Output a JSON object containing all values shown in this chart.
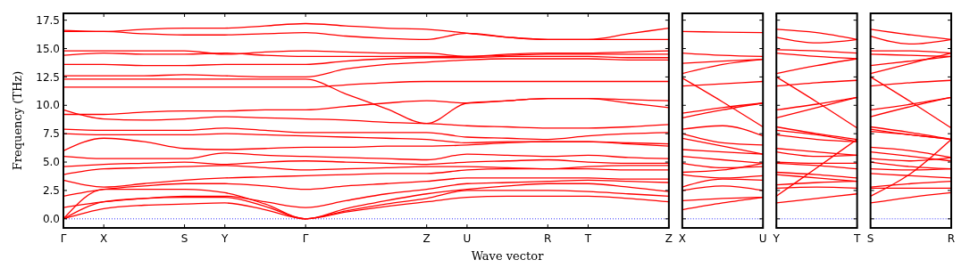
{
  "chart_data": [
    {
      "type": "line",
      "xlabel": "Wave vector",
      "ylabel": "Frequency (THz)",
      "categories": [
        "Γ",
        "X",
        null,
        "S",
        "Y",
        null,
        "Γ",
        null,
        null,
        "Z",
        "U",
        null,
        "R",
        "T",
        null,
        "Z"
      ],
      "ylim": [
        -0.8,
        18.1
      ],
      "yticks": [
        {
          "value": 0,
          "label": "0.0"
        },
        2.5,
        {
          "value": 5,
          "label": "5.0"
        },
        7.5,
        {
          "value": 10,
          "label": "10.0"
        },
        12.5,
        {
          "value": 15,
          "label": "15.0"
        },
        17.5
      ],
      "grid": false,
      "marker": "none",
      "line_style": "solid",
      "ref_lines": [
        {
          "axis": "y",
          "value": 0,
          "color": "#0000ff",
          "line_style": "dotted"
        }
      ],
      "series": [
        {
          "color": "#ff0000",
          "values": [
            0,
            0.9,
            1.2,
            1.3,
            1.4,
            0.8,
            0,
            0.6,
            1.1,
            1.5,
            1.9,
            2.0,
            2.0,
            2.0,
            1.8,
            1.5
          ]
        },
        {
          "color": "#ff0000",
          "values": [
            0,
            1.5,
            1.8,
            1.9,
            1.9,
            1.1,
            0,
            0.7,
            1.3,
            1.8,
            2.5,
            2.5,
            2.5,
            2.4,
            2.2,
            2.0
          ]
        },
        {
          "color": "#ff0000",
          "values": [
            0,
            2.6,
            2.6,
            2.6,
            2.3,
            1.3,
            0,
            0.9,
            1.6,
            2.2,
            2.6,
            2.9,
            3.1,
            3.1,
            2.8,
            2.4
          ]
        },
        {
          "color": "#ff0000",
          "values": [
            1.0,
            1.5,
            1.8,
            2.0,
            2.0,
            1.5,
            1.0,
            1.6,
            2.2,
            2.6,
            3.1,
            3.2,
            3.3,
            3.4,
            3.3,
            3.2
          ]
        },
        {
          "color": "#ff0000",
          "values": [
            2.0,
            2.6,
            2.9,
            3.1,
            3.1,
            2.9,
            2.6,
            2.9,
            3.1,
            3.3,
            3.6,
            3.6,
            3.6,
            3.6,
            3.5,
            3.5
          ]
        },
        {
          "color": "#ff0000",
          "values": [
            3.4,
            2.8,
            3.1,
            3.4,
            3.6,
            3.7,
            3.8,
            3.9,
            4.0,
            4.0,
            4.3,
            4.4,
            4.4,
            4.4,
            4.3,
            4.3
          ]
        },
        {
          "color": "#ff0000",
          "values": [
            3.9,
            4.4,
            4.5,
            4.6,
            4.7,
            4.5,
            4.3,
            4.4,
            4.5,
            4.6,
            4.6,
            4.5,
            4.4,
            4.6,
            4.7,
            4.7
          ]
        },
        {
          "color": "#ff0000",
          "values": [
            4.6,
            4.8,
            4.9,
            5.0,
            4.8,
            5.0,
            5.1,
            5.0,
            4.9,
            4.8,
            5.0,
            5.1,
            5.2,
            5.0,
            4.9,
            4.9
          ]
        },
        {
          "color": "#ff0000",
          "values": [
            5.5,
            5.3,
            5.3,
            5.3,
            5.8,
            5.6,
            5.5,
            5.4,
            5.3,
            5.2,
            5.7,
            5.6,
            5.5,
            5.6,
            5.4,
            5.3
          ]
        },
        {
          "color": "#ff0000",
          "values": [
            6.0,
            7.1,
            6.8,
            6.2,
            6.1,
            6.2,
            6.3,
            6.3,
            6.4,
            6.4,
            6.5,
            6.7,
            6.8,
            6.8,
            6.6,
            6.4
          ]
        },
        {
          "color": "#ff0000",
          "values": [
            7.5,
            7.4,
            7.4,
            7.4,
            7.5,
            7.4,
            7.3,
            7.2,
            7.1,
            7.0,
            6.7,
            6.8,
            6.8,
            6.8,
            6.7,
            6.6
          ]
        },
        {
          "color": "#ff0000",
          "values": [
            7.9,
            7.8,
            7.8,
            7.8,
            8.0,
            7.8,
            7.6,
            7.6,
            7.6,
            7.6,
            7.2,
            7.1,
            7.0,
            7.3,
            7.5,
            7.6
          ]
        },
        {
          "color": "#ff0000",
          "values": [
            9.6,
            8.8,
            8.7,
            8.8,
            9.0,
            8.9,
            8.8,
            8.7,
            8.5,
            8.4,
            8.2,
            8.1,
            8.0,
            8.0,
            8.1,
            8.3
          ]
        },
        {
          "color": "#ff0000",
          "values": [
            9.2,
            9.2,
            9.4,
            9.5,
            9.5,
            9.6,
            9.6,
            9.9,
            10.2,
            10.4,
            10.2,
            10.4,
            10.6,
            10.6,
            10.2,
            9.8
          ]
        },
        {
          "color": "#ff0000",
          "values": [
            11.6,
            11.6,
            11.6,
            11.6,
            11.6,
            11.6,
            11.6,
            11.8,
            12.0,
            12.1,
            12.1,
            12.1,
            12.1,
            12.1,
            12.1,
            12.1
          ]
        },
        {
          "color": "#ff0000",
          "values": [
            12.3,
            12.3,
            12.3,
            12.3,
            12.3,
            12.3,
            12.3,
            11.0,
            9.7,
            8.4,
            10.2,
            10.4,
            10.6,
            10.6,
            10.5,
            10.4
          ]
        },
        {
          "color": "#ff0000",
          "values": [
            12.6,
            12.6,
            12.6,
            12.7,
            12.6,
            12.5,
            12.5,
            13.2,
            13.6,
            13.8,
            14.0,
            14.1,
            14.1,
            14.1,
            14.0,
            14.0
          ]
        },
        {
          "color": "#ff0000",
          "values": [
            13.6,
            13.6,
            13.5,
            13.5,
            13.6,
            13.6,
            13.6,
            13.9,
            14.1,
            14.2,
            14.2,
            14.3,
            14.3,
            14.3,
            14.2,
            14.2
          ]
        },
        {
          "color": "#ff0000",
          "values": [
            14.4,
            14.6,
            14.5,
            14.5,
            14.6,
            14.4,
            14.3,
            14.3,
            14.3,
            14.3,
            14.3,
            14.4,
            14.5,
            14.5,
            14.5,
            14.5
          ]
        },
        {
          "color": "#ff0000",
          "values": [
            14.8,
            14.8,
            14.8,
            14.8,
            14.5,
            14.7,
            14.8,
            14.7,
            14.6,
            14.6,
            14.3,
            14.5,
            14.6,
            14.6,
            14.7,
            14.8
          ]
        },
        {
          "color": "#ff0000",
          "values": [
            16.5,
            16.5,
            16.3,
            16.2,
            16.2,
            16.3,
            16.4,
            16.1,
            15.9,
            15.8,
            16.35,
            16.0,
            15.8,
            15.8,
            15.8,
            15.8
          ]
        },
        {
          "color": "#ff0000",
          "values": [
            16.6,
            16.5,
            16.7,
            16.8,
            16.8,
            17.0,
            17.2,
            17.0,
            16.8,
            16.7,
            16.35,
            16.0,
            15.8,
            15.8,
            16.3,
            16.8
          ]
        }
      ]
    },
    {
      "type": "line",
      "categories": [
        "X",
        null,
        "U"
      ],
      "ylim": [
        -0.8,
        18.1
      ],
      "yticks": [
        0,
        2.5,
        5,
        7.5,
        10,
        12.5,
        15,
        17.5
      ],
      "tick_labels": "x",
      "grid": false,
      "marker": "none",
      "line_style": "solid",
      "ref_lines": [
        {
          "axis": "y",
          "value": 0,
          "color": "#0000ff",
          "line_style": "dotted"
        }
      ],
      "series": [
        {
          "color": "#ff0000",
          "values": [
            16.5,
            16.45,
            16.4
          ]
        },
        {
          "color": "#ff0000",
          "values": [
            14.6,
            14.4,
            14.3
          ]
        },
        {
          "color": "#ff0000",
          "values": [
            13.7,
            13.9,
            14.05
          ]
        },
        {
          "color": "#ff0000",
          "values": [
            12.8,
            13.6,
            14.05
          ]
        },
        {
          "color": "#ff0000",
          "values": [
            12.4,
            10.3,
            8.1
          ]
        },
        {
          "color": "#ff0000",
          "values": [
            11.7,
            11.9,
            12.1
          ]
        },
        {
          "color": "#ff0000",
          "values": [
            9.3,
            9.8,
            10.2
          ]
        },
        {
          "color": "#ff0000",
          "values": [
            8.9,
            9.6,
            10.2
          ]
        },
        {
          "color": "#ff0000",
          "values": [
            7.9,
            8.2,
            7.3
          ]
        },
        {
          "color": "#ff0000",
          "values": [
            7.5,
            6.7,
            6.5
          ]
        },
        {
          "color": "#ff0000",
          "values": [
            7.1,
            6.4,
            5.7
          ]
        },
        {
          "color": "#ff0000",
          "values": [
            6.1,
            5.9,
            5.7
          ]
        },
        {
          "color": "#ff0000",
          "values": [
            5.5,
            5.2,
            4.9
          ]
        },
        {
          "color": "#ff0000",
          "values": [
            4.9,
            4.5,
            4.6
          ]
        },
        {
          "color": "#ff0000",
          "values": [
            4.1,
            4.3,
            4.9
          ]
        },
        {
          "color": "#ff0000",
          "values": [
            3.9,
            3.6,
            3.8
          ]
        },
        {
          "color": "#ff0000",
          "values": [
            2.8,
            3.5,
            3.4
          ]
        },
        {
          "color": "#ff0000",
          "values": [
            2.5,
            2.9,
            2.5
          ]
        },
        {
          "color": "#ff0000",
          "values": [
            1.6,
            1.8,
            1.9
          ]
        },
        {
          "color": "#ff0000",
          "values": [
            0.8,
            1.4,
            1.9
          ]
        }
      ]
    },
    {
      "type": "line",
      "categories": [
        "Y",
        null,
        "T"
      ],
      "ylim": [
        -0.8,
        18.1
      ],
      "yticks": [
        0,
        2.5,
        5,
        7.5,
        10,
        12.5,
        15,
        17.5
      ],
      "tick_labels": "x",
      "grid": false,
      "marker": "none",
      "line_style": "solid",
      "ref_lines": [
        {
          "axis": "y",
          "value": 0,
          "color": "#0000ff",
          "line_style": "dotted"
        }
      ],
      "series": [
        {
          "color": "#ff0000",
          "values": [
            16.7,
            16.4,
            15.8
          ]
        },
        {
          "color": "#ff0000",
          "values": [
            16.0,
            15.5,
            15.8
          ]
        },
        {
          "color": "#ff0000",
          "values": [
            14.9,
            14.8,
            14.6
          ]
        },
        {
          "color": "#ff0000",
          "values": [
            14.6,
            14.3,
            14.1
          ]
        },
        {
          "color": "#ff0000",
          "values": [
            12.8,
            13.5,
            14.1
          ]
        },
        {
          "color": "#ff0000",
          "values": [
            12.5,
            10.3,
            8.0
          ]
        },
        {
          "color": "#ff0000",
          "values": [
            11.7,
            12.0,
            12.2
          ]
        },
        {
          "color": "#ff0000",
          "values": [
            9.6,
            10.1,
            10.7
          ]
        },
        {
          "color": "#ff0000",
          "values": [
            8.9,
            9.8,
            10.7
          ]
        },
        {
          "color": "#ff0000",
          "values": [
            8.1,
            7.5,
            7.0
          ]
        },
        {
          "color": "#ff0000",
          "values": [
            7.8,
            7.4,
            6.8
          ]
        },
        {
          "color": "#ff0000",
          "values": [
            7.4,
            7.0,
            6.8
          ]
        },
        {
          "color": "#ff0000",
          "values": [
            6.2,
            5.9,
            5.6
          ]
        },
        {
          "color": "#ff0000",
          "values": [
            5.9,
            5.5,
            5.6
          ]
        },
        {
          "color": "#ff0000",
          "values": [
            5.0,
            4.9,
            4.9
          ]
        },
        {
          "color": "#ff0000",
          "values": [
            4.9,
            4.7,
            4.4
          ]
        },
        {
          "color": "#ff0000",
          "values": [
            2.0,
            4.5,
            7.0
          ]
        },
        {
          "color": "#ff0000",
          "values": [
            4.1,
            3.9,
            3.6
          ]
        },
        {
          "color": "#ff0000",
          "values": [
            3.9,
            3.6,
            3.3
          ]
        },
        {
          "color": "#ff0000",
          "values": [
            3.0,
            3.2,
            3.3
          ]
        },
        {
          "color": "#ff0000",
          "values": [
            2.7,
            2.8,
            2.7
          ]
        },
        {
          "color": "#ff0000",
          "values": [
            1.4,
            1.8,
            2.2
          ]
        }
      ]
    },
    {
      "type": "line",
      "categories": [
        "S",
        null,
        "R"
      ],
      "ylim": [
        -0.8,
        18.1
      ],
      "yticks": [
        0,
        2.5,
        5,
        7.5,
        10,
        12.5,
        15,
        17.5
      ],
      "tick_labels": "x",
      "grid": false,
      "marker": "none",
      "line_style": "solid",
      "ref_lines": [
        {
          "axis": "y",
          "value": 0,
          "color": "#0000ff",
          "line_style": "dotted"
        }
      ],
      "series": [
        {
          "color": "#ff0000",
          "values": [
            16.7,
            16.2,
            15.8
          ]
        },
        {
          "color": "#ff0000",
          "values": [
            16.1,
            15.4,
            15.8
          ]
        },
        {
          "color": "#ff0000",
          "values": [
            14.8,
            14.8,
            14.6
          ]
        },
        {
          "color": "#ff0000",
          "values": [
            14.5,
            14.4,
            14.3
          ]
        },
        {
          "color": "#ff0000",
          "values": [
            13.5,
            13.9,
            14.3
          ]
        },
        {
          "color": "#ff0000",
          "values": [
            12.8,
            13.7,
            14.6
          ]
        },
        {
          "color": "#ff0000",
          "values": [
            12.5,
            10.3,
            8.0
          ]
        },
        {
          "color": "#ff0000",
          "values": [
            11.7,
            12.0,
            12.2
          ]
        },
        {
          "color": "#ff0000",
          "values": [
            9.6,
            10.1,
            10.7
          ]
        },
        {
          "color": "#ff0000",
          "values": [
            9.0,
            9.9,
            10.7
          ]
        },
        {
          "color": "#ff0000",
          "values": [
            8.1,
            7.6,
            7.0
          ]
        },
        {
          "color": "#ff0000",
          "values": [
            7.9,
            7.4,
            7.0
          ]
        },
        {
          "color": "#ff0000",
          "values": [
            7.7,
            7.4,
            7.0
          ]
        },
        {
          "color": "#ff0000",
          "values": [
            6.3,
            6.0,
            5.4
          ]
        },
        {
          "color": "#ff0000",
          "values": [
            5.9,
            5.5,
            5.1
          ]
        },
        {
          "color": "#ff0000",
          "values": [
            5.3,
            5.1,
            5.4
          ]
        },
        {
          "color": "#ff0000",
          "values": [
            5.0,
            4.6,
            4.4
          ]
        },
        {
          "color": "#ff0000",
          "values": [
            4.4,
            4.3,
            4.4
          ]
        },
        {
          "color": "#ff0000",
          "values": [
            4.0,
            3.8,
            3.6
          ]
        },
        {
          "color": "#ff0000",
          "values": [
            2.8,
            3.1,
            3.3
          ]
        },
        {
          "color": "#ff0000",
          "values": [
            2.7,
            2.7,
            2.7
          ]
        },
        {
          "color": "#ff0000",
          "values": [
            2.0,
            4.0,
            7.0
          ]
        },
        {
          "color": "#ff0000",
          "values": [
            1.4,
            1.9,
            2.3
          ]
        }
      ]
    }
  ]
}
